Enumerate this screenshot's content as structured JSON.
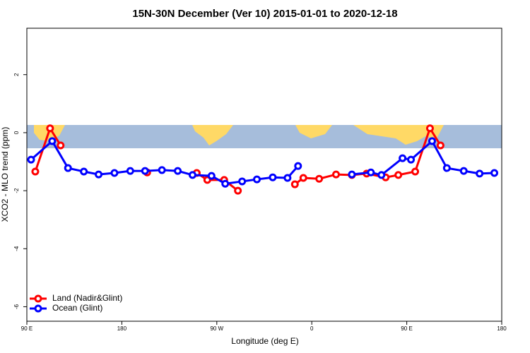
{
  "chart_data": {
    "type": "line",
    "title": "15N-30N December (Ver 10)   2015-01-01 to 2020-12-18",
    "x_label": "Longitude (deg E)",
    "y_label": "XCO2 - MLO trend (ppm)",
    "xlim": [
      90,
      540
    ],
    "xticks": [
      {
        "value": 90,
        "label": "90 E"
      },
      {
        "value": 180,
        "label": "180"
      },
      {
        "value": 270,
        "label": "90 W"
      },
      {
        "value": 360,
        "label": "0"
      },
      {
        "value": 450,
        "label": "90 E"
      },
      {
        "value": 540,
        "label": "180"
      }
    ],
    "ylim": [
      -6.5,
      3.6
    ],
    "yticks": [
      -6,
      -4,
      -2,
      0,
      2
    ],
    "legend": "bottom-left",
    "series": [
      {
        "name": "Land (Nadir&Glint)",
        "color": "#ff0000",
        "x": [
          98,
          112,
          122,
          null,
          204,
          null,
          251,
          261,
          277,
          290,
          null,
          344,
          352,
          367,
          383,
          398,
          412,
          430,
          442,
          458,
          472,
          482
        ],
        "values": [
          -1.34,
          0.15,
          -0.44,
          null,
          -1.37,
          null,
          -1.39,
          -1.63,
          -1.63,
          -2.0,
          null,
          -1.78,
          -1.56,
          -1.59,
          -1.44,
          -1.46,
          -1.41,
          -1.54,
          -1.46,
          -1.34,
          0.15,
          -0.44
        ]
      },
      {
        "name": "Ocean (Glint)",
        "color": "#0000ff",
        "x": [
          94,
          114,
          129,
          144,
          158,
          173,
          188,
          202,
          218,
          233,
          247,
          265,
          278,
          294,
          308,
          323,
          337,
          347,
          null,
          398,
          416,
          426,
          446,
          454,
          474,
          488,
          504,
          519,
          533
        ],
        "values": [
          -0.93,
          -0.29,
          -1.22,
          -1.34,
          -1.44,
          -1.39,
          -1.32,
          -1.32,
          -1.29,
          -1.32,
          -1.46,
          -1.49,
          -1.76,
          -1.68,
          -1.61,
          -1.54,
          -1.56,
          -1.15,
          null,
          -1.44,
          -1.37,
          -1.46,
          -0.88,
          -0.93,
          -0.29,
          -1.22,
          -1.32,
          -1.41,
          -1.39
        ]
      }
    ]
  }
}
